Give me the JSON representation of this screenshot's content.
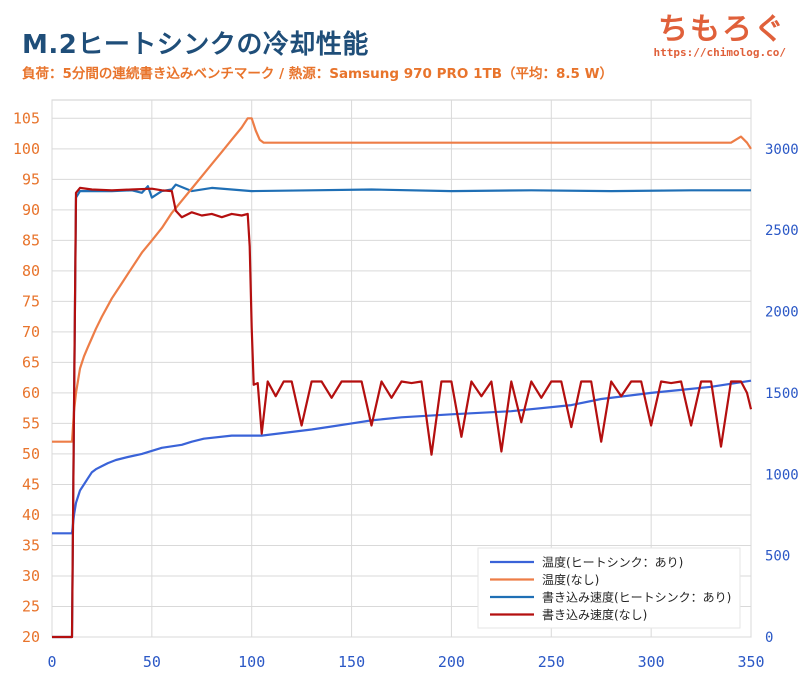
{
  "header": {
    "title": "M.2ヒートシンクの冷却性能",
    "subtitle": "負荷：5分間の連続書き込みベンチマーク / 熱源：Samsung 970 PRO 1TB（平均：8.5 W）",
    "brand_name": "ちもろぐ",
    "brand_url": "https://chimolog.co/"
  },
  "colors": {
    "temp_heatsink": "#3a63d8",
    "temp_none": "#ed7d47",
    "speed_heatsink": "#1f6fb5",
    "speed_none": "#b40f0f",
    "left_axis": "#e8742c",
    "right_axis": "#2b58c6",
    "grid": "#d9d9d9"
  },
  "chart_data": {
    "type": "line",
    "xlim": [
      0,
      350
    ],
    "ylim_left": [
      20,
      108
    ],
    "ylim_right": [
      0,
      3300
    ],
    "x_ticks": [
      "0",
      "50",
      "100",
      "150",
      "200",
      "250",
      "300",
      "350"
    ],
    "y_ticks_left": [
      "20",
      "25",
      "30",
      "35",
      "40",
      "45",
      "50",
      "55",
      "60",
      "65",
      "70",
      "75",
      "80",
      "85",
      "90",
      "95",
      "100",
      "105"
    ],
    "y_ticks_right": [
      "0",
      "500",
      "1000",
      "1500",
      "2000",
      "2500",
      "3000"
    ],
    "grid": true,
    "legend_position": "bottom-right",
    "series": [
      {
        "name": "温度(ヒートシンク：あり)",
        "axis": "left",
        "x": [
          0,
          10,
          11,
          12,
          13,
          14,
          16,
          18,
          20,
          22,
          25,
          28,
          32,
          38,
          45,
          55,
          65,
          70,
          76,
          90,
          105,
          130,
          140,
          150,
          160,
          175,
          200,
          230,
          260,
          275,
          300,
          315,
          330,
          350
        ],
        "y": [
          37,
          37,
          40,
          42,
          43,
          44,
          45,
          46,
          47,
          47.5,
          48,
          48.5,
          49,
          49.5,
          50,
          51,
          51.5,
          52,
          52.5,
          53,
          53,
          54,
          54.5,
          55,
          55.5,
          56,
          56.5,
          57,
          58,
          59,
          60,
          60.5,
          61,
          62
        ]
      },
      {
        "name": "温度(なし)",
        "axis": "left",
        "x": [
          0,
          10,
          11,
          12,
          13,
          14,
          16,
          18,
          20,
          22,
          25,
          30,
          35,
          40,
          45,
          50,
          55,
          60,
          65,
          70,
          75,
          80,
          85,
          90,
          95,
          98,
          100,
          102,
          104,
          106,
          110,
          120,
          130,
          150,
          170,
          200,
          230,
          260,
          290,
          320,
          340,
          345,
          348,
          350
        ],
        "y": [
          52,
          52,
          57,
          60,
          62,
          64,
          66,
          67.5,
          69,
          70.5,
          72.5,
          75.5,
          78,
          80.5,
          83,
          85,
          87,
          89.5,
          91.5,
          93.5,
          95.5,
          97.5,
          99.5,
          101.5,
          103.5,
          105,
          105,
          103,
          101.5,
          101,
          101,
          101,
          101,
          101,
          101,
          101,
          101,
          101,
          101,
          101,
          101,
          102,
          101,
          100
        ]
      },
      {
        "name": "書き込み速度(ヒートシンク：あり)",
        "axis": "right",
        "x": [
          0,
          10,
          11,
          12,
          14,
          20,
          30,
          40,
          45,
          48,
          50,
          55,
          60,
          62,
          70,
          80,
          100,
          130,
          160,
          200,
          240,
          280,
          320,
          350
        ],
        "y": [
          0,
          0,
          1400,
          2700,
          2740,
          2740,
          2740,
          2745,
          2730,
          2770,
          2700,
          2740,
          2750,
          2780,
          2740,
          2760,
          2740,
          2745,
          2750,
          2740,
          2745,
          2740,
          2745,
          2745
        ]
      },
      {
        "name": "書き込み速度(なし)",
        "axis": "right",
        "x": [
          0,
          10,
          11,
          12,
          14,
          20,
          30,
          40,
          50,
          55,
          60,
          62,
          65,
          70,
          75,
          80,
          85,
          90,
          95,
          98,
          99,
          100,
          101,
          103,
          105,
          108,
          112,
          116,
          120,
          125,
          130,
          135,
          140,
          145,
          150,
          155,
          160,
          165,
          170,
          175,
          180,
          185,
          190,
          195,
          200,
          205,
          210,
          215,
          220,
          225,
          230,
          235,
          240,
          245,
          250,
          255,
          260,
          265,
          270,
          275,
          280,
          285,
          290,
          295,
          300,
          305,
          310,
          315,
          320,
          325,
          330,
          335,
          340,
          345,
          348,
          350
        ],
        "y": [
          0,
          0,
          1400,
          2730,
          2760,
          2750,
          2745,
          2750,
          2755,
          2745,
          2740,
          2620,
          2580,
          2610,
          2590,
          2600,
          2580,
          2600,
          2590,
          2600,
          2400,
          1900,
          1550,
          1560,
          1250,
          1570,
          1480,
          1570,
          1570,
          1300,
          1570,
          1570,
          1470,
          1570,
          1570,
          1570,
          1300,
          1570,
          1470,
          1570,
          1560,
          1570,
          1120,
          1570,
          1570,
          1230,
          1570,
          1480,
          1570,
          1140,
          1570,
          1320,
          1570,
          1470,
          1570,
          1570,
          1290,
          1570,
          1570,
          1200,
          1570,
          1480,
          1570,
          1570,
          1300,
          1570,
          1560,
          1570,
          1300,
          1570,
          1570,
          1170,
          1570,
          1570,
          1500,
          1400
        ]
      }
    ]
  }
}
